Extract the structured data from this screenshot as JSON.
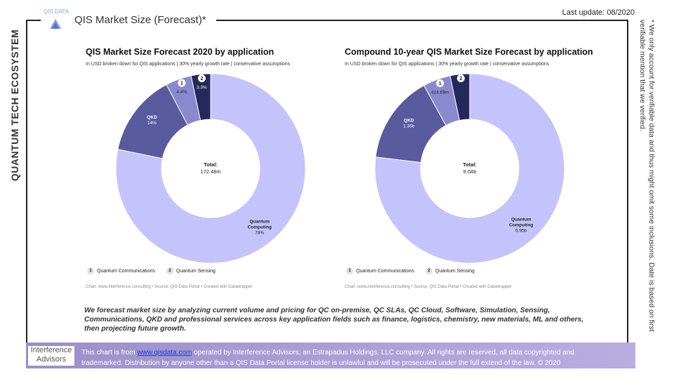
{
  "sidebar_title": "QUANTUM TECH ECOSYSTEM",
  "header": {
    "logo_text": "QIS DATA",
    "title": "QIS Market Size (Forecast)*",
    "last_update": "Last update: 08/2020"
  },
  "footnote": "* We only account for verifiable data and thus might omit some inclusions. Date is based on first verifiable mention that we verified.",
  "description": "We forecast market size by analyzing current volume and pricing for QC on-premise, QC SLAs, QC Cloud, Software, Simulation, Sensing, Communications, QKD and professional services across key application fields such as finance, logistics, chemistry, new materials, ML and others, then projecting future growth.",
  "footer": {
    "logo_line1": "Interference",
    "logo_line2": "Advisors",
    "text_before": "This chart is from ",
    "link": "www.qisdata.com",
    "text_after": " operated by Interference Advisors, an Estrapadus Holdings, LLC company. All rights are reserved, all data copyrighted and trademarked. Distribution by anyone other than a QIS Data Portal license holder is unlawful and will be prosecuted under the full extend of the law. © 2020"
  },
  "colors": {
    "quantum_computing": "#c5c3fb",
    "qkd": "#5a5a9e",
    "quantum_communications": "#8a88cf",
    "quantum_sensing": "#24285a"
  },
  "chart_data": [
    {
      "type": "pie",
      "title": "QIS Market Size Forecast 2020 by application",
      "subtitle": "In USD broken down for QIS applications | 30% yearly growth rate | conservative assumptions",
      "center_label": "Total:",
      "center_value": "172.48m",
      "slices": [
        {
          "label": "Quantum Computing",
          "value": 78,
          "display": "78%"
        },
        {
          "label": "QKD",
          "value": 14,
          "display": "14%"
        },
        {
          "label": "Quantum Communications",
          "value": 4.4,
          "display": "4.4%",
          "marker": "1"
        },
        {
          "label": "Quantum Sensing",
          "value": 3.3,
          "display": "3.3%",
          "marker": "2"
        }
      ],
      "legend": [
        {
          "marker": "1",
          "label": "Quantum Communications"
        },
        {
          "marker": "2",
          "label": "Quantum Sensing"
        }
      ],
      "credit": "Chart: www.interference.consulting • Source: QIS Data Portal • Created with Datawrapper"
    },
    {
      "type": "pie",
      "title": "Compound 10-year QIS Market Size Forecast by application",
      "subtitle": "In USD broken down for QIS applications | 30% yearly growth rate | conservative assumptions",
      "center_label": "Total:",
      "center_value": "9.04b",
      "slices": [
        {
          "label": "Quantum Computing",
          "value": 6.95,
          "display": "6.95b"
        },
        {
          "label": "QKD",
          "value": 1.36,
          "display": "1.36b"
        },
        {
          "label": "Quantum Communications",
          "value": 0.42469,
          "display": "424.69m",
          "marker": "1"
        },
        {
          "label": "Quantum Sensing",
          "value": 0.3,
          "display": "",
          "marker": "2"
        }
      ],
      "legend": [
        {
          "marker": "1",
          "label": "Quantum Communications"
        },
        {
          "marker": "2",
          "label": "Quantum Sensing"
        }
      ],
      "credit": "Chart: www.interference.consulting • Source: QIS Data Portal • Created with Datawrapper"
    }
  ]
}
